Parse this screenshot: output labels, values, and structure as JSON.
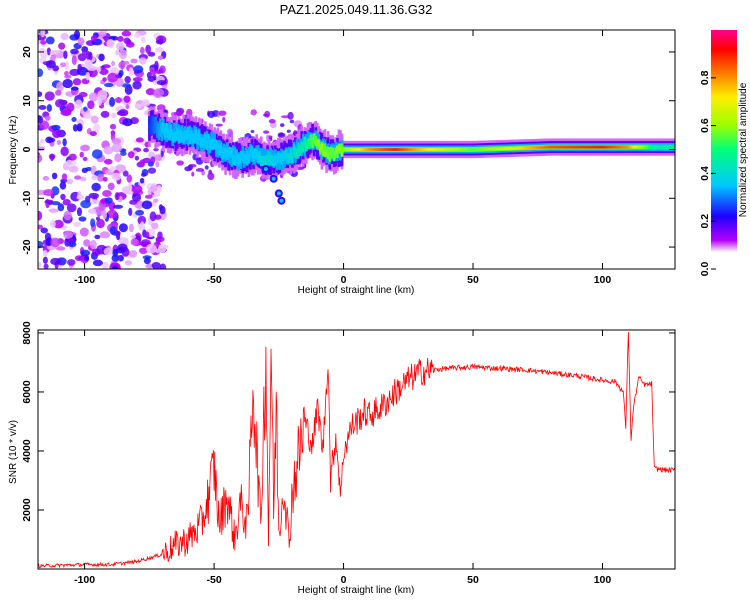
{
  "title": "PAZ1.2025.049.11.36.G32",
  "chart_data": [
    {
      "type": "heatmap",
      "xlabel": "Height of straight line (km)",
      "ylabel": "Frequency (Hz)",
      "xlim": [
        -118,
        128
      ],
      "ylim": [
        -24.5,
        24.5
      ],
      "x_ticks": [
        -100,
        -50,
        0,
        50,
        100
      ],
      "y_ticks": [
        -20,
        -10,
        0,
        10,
        20
      ],
      "colorbar": {
        "label": "Normalized spectral amplitude",
        "ticks": [
          "0.0",
          "0.2",
          "0.4",
          "0.6",
          "0.8"
        ],
        "range": [
          0,
          1
        ]
      },
      "ridge": {
        "x": [
          -75,
          -70,
          -65,
          -60,
          -55,
          -50,
          -45,
          -40,
          -35,
          -30,
          -25,
          -20,
          -15,
          -12,
          -8,
          -5,
          0,
          10,
          20,
          30,
          50,
          80,
          100,
          110,
          120,
          128
        ],
        "freq": [
          5,
          4,
          3,
          3,
          2,
          1,
          -1,
          -2,
          -1,
          -2,
          -2,
          -1,
          1,
          2,
          0,
          -1,
          0,
          0,
          0,
          0,
          0,
          0.5,
          0.5,
          0.5,
          0.5,
          0.5
        ],
        "amp": [
          0.25,
          0.35,
          0.35,
          0.35,
          0.35,
          0.35,
          0.35,
          0.35,
          0.35,
          0.4,
          0.35,
          0.4,
          0.45,
          0.55,
          0.6,
          0.55,
          0.6,
          0.8,
          0.9,
          0.75,
          0.55,
          0.85,
          0.9,
          0.8,
          0.45,
          0.45
        ]
      },
      "noise_region_x": [
        -118,
        -75
      ]
    },
    {
      "type": "line",
      "xlabel": "Height of straight line (km)",
      "ylabel": "SNR (10 * v/v)",
      "xlim": [
        -118,
        128
      ],
      "ylim": [
        0,
        8100
      ],
      "x_ticks": [
        -100,
        -50,
        0,
        50,
        100
      ],
      "y_ticks": [
        2000,
        4000,
        6000,
        8000
      ],
      "color": "#ff0000",
      "series": [
        {
          "x": [
            -118,
            -100,
            -90,
            -80,
            -70,
            -65,
            -60,
            -55,
            -52,
            -50,
            -48,
            -45,
            -42,
            -40,
            -37,
            -35,
            -32,
            -30,
            -29,
            -28,
            -27,
            -26,
            -25,
            -23,
            -21,
            -20,
            -18,
            -15,
            -12,
            -10,
            -8,
            -6,
            -5,
            -3,
            -1,
            0,
            3,
            5,
            8,
            10,
            15,
            20,
            25,
            30,
            40,
            50,
            60,
            70,
            80,
            90,
            100,
            105,
            108,
            109,
            110,
            111,
            112,
            114,
            116,
            118,
            119,
            120,
            125,
            128
          ],
          "y": [
            100,
            150,
            150,
            250,
            500,
            800,
            1000,
            1500,
            2500,
            3500,
            1500,
            2500,
            1000,
            2200,
            1500,
            6500,
            1500,
            7500,
            1000,
            7700,
            2000,
            5500,
            1200,
            3000,
            800,
            2500,
            3500,
            5000,
            4200,
            5500,
            4000,
            7200,
            3000,
            4500,
            2500,
            4000,
            4800,
            5000,
            5300,
            5200,
            5500,
            6000,
            6400,
            6700,
            6800,
            6850,
            6800,
            6750,
            6650,
            6550,
            6400,
            6350,
            6000,
            4800,
            8100,
            4400,
            5500,
            6500,
            6250,
            6250,
            6300,
            3400,
            3350,
            3350
          ]
        }
      ]
    }
  ]
}
